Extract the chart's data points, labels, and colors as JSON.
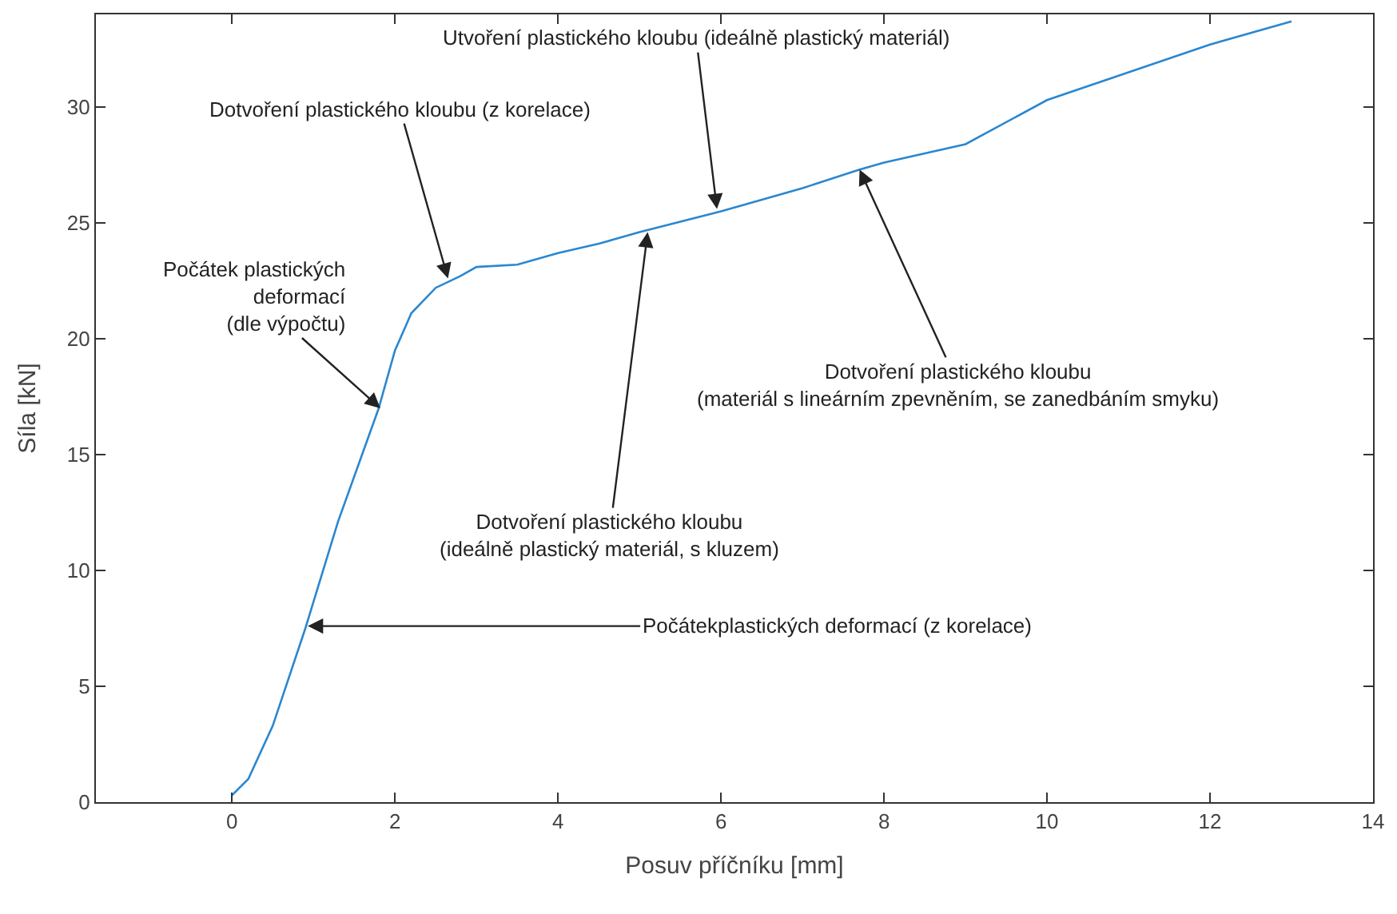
{
  "chart_data": {
    "type": "line",
    "xlabel": "Posuv příčníku [mm]",
    "ylabel": "Síla [kN]",
    "xlim": [
      -1.67,
      14
    ],
    "ylim": [
      0,
      34
    ],
    "xticks": [
      0,
      2,
      4,
      6,
      8,
      10,
      12,
      14
    ],
    "yticks": [
      0,
      5,
      10,
      15,
      20,
      25,
      30
    ],
    "marker": "none",
    "line_style": "solid",
    "series": [
      {
        "color": "#2a87d0",
        "x": [
          0,
          0.2,
          0.5,
          0.9,
          1.3,
          1.8,
          2.0,
          2.2,
          2.5,
          2.8,
          3.0,
          3.5,
          4.0,
          4.5,
          5.0,
          6.0,
          7.0,
          7.7,
          8.0,
          9.0,
          10.0,
          11.0,
          12.0,
          13.0
        ],
        "values": [
          0.3,
          1.0,
          3.3,
          7.5,
          12.1,
          17.0,
          19.5,
          21.1,
          22.2,
          22.7,
          23.1,
          23.2,
          23.7,
          24.1,
          24.6,
          25.5,
          26.5,
          27.3,
          27.6,
          28.4,
          30.3,
          31.5,
          32.7,
          33.7
        ]
      }
    ],
    "annotations": [
      {
        "text": "Počátek plastických\ndeformací\n(dle výpočtu)",
        "x": 1.82,
        "y": 17.0
      },
      {
        "text": "Dotvoření plastického kloubu (z korelace)",
        "x": 2.65,
        "y": 22.6
      },
      {
        "text": "Utvoření plastického kloubu (ideálně plastický materiál)",
        "x": 5.95,
        "y": 25.6
      },
      {
        "text": "Dotvoření plastického kloubu\n(materiál s lineárním zpevněním, se zanedbáním smyku)",
        "x": 7.7,
        "y": 27.3
      },
      {
        "text": "Dotvoření plastického kloubu\n(ideálně plastický materiál, s kluzem)",
        "x": 5.1,
        "y": 24.6
      },
      {
        "text": "Počátekplastických deformací (z korelace)",
        "x": 0.93,
        "y": 7.6
      }
    ]
  }
}
